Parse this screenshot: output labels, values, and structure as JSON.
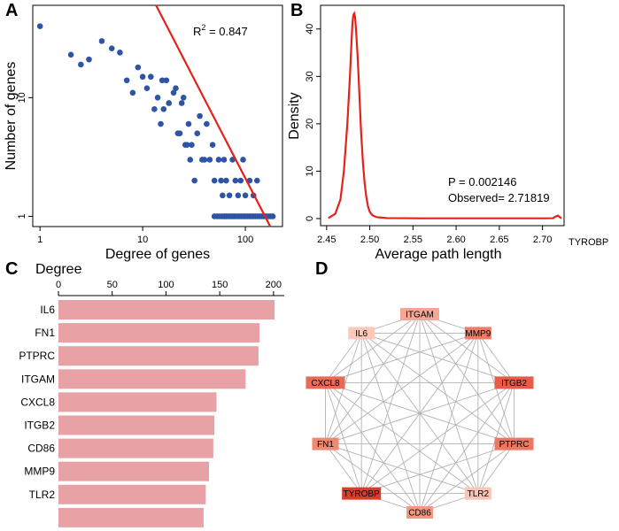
{
  "panels": {
    "a": "A",
    "b": "B",
    "c": "C",
    "d": "D"
  },
  "chart_data": [
    {
      "id": "A",
      "type": "scatter",
      "xscale": "log",
      "yscale": "log",
      "xlabel": "Degree of genes",
      "ylabel": "Number of genes",
      "xlim": [
        0.85,
        230
      ],
      "ylim": [
        0.82,
        60
      ],
      "x_ticks": [
        "1",
        "10",
        "100"
      ],
      "y_ticks": [
        "1",
        "10"
      ],
      "annotation_prefix": "R",
      "annotation_sup": "2",
      "annotation_value": " = 0.847",
      "points": [
        [
          1,
          40
        ],
        [
          2,
          23
        ],
        [
          2.5,
          19
        ],
        [
          3,
          21
        ],
        [
          4,
          30
        ],
        [
          5,
          26
        ],
        [
          6,
          24
        ],
        [
          7,
          14
        ],
        [
          8,
          11
        ],
        [
          9,
          18
        ],
        [
          10,
          15
        ],
        [
          11,
          12
        ],
        [
          12,
          15
        ],
        [
          13,
          8
        ],
        [
          14,
          10
        ],
        [
          15,
          6
        ],
        [
          15.5,
          14
        ],
        [
          16,
          8
        ],
        [
          17,
          14
        ],
        [
          18,
          9
        ],
        [
          20,
          11
        ],
        [
          21,
          12
        ],
        [
          22,
          5
        ],
        [
          23,
          5
        ],
        [
          24,
          9
        ],
        [
          25,
          10
        ],
        [
          26,
          4
        ],
        [
          27,
          4
        ],
        [
          28,
          6
        ],
        [
          29,
          3
        ],
        [
          30,
          4
        ],
        [
          32,
          2
        ],
        [
          34,
          5
        ],
        [
          36,
          7
        ],
        [
          38,
          3
        ],
        [
          40,
          3
        ],
        [
          42,
          6
        ],
        [
          45,
          3
        ],
        [
          48,
          4
        ],
        [
          50,
          2
        ],
        [
          55,
          3
        ],
        [
          58,
          2
        ],
        [
          60,
          1.5
        ],
        [
          62,
          3
        ],
        [
          65,
          2
        ],
        [
          70,
          1.5
        ],
        [
          75,
          3
        ],
        [
          80,
          2
        ],
        [
          85,
          1.5
        ],
        [
          90,
          2
        ],
        [
          95,
          3
        ],
        [
          100,
          1.5
        ],
        [
          110,
          2
        ],
        [
          120,
          1.5
        ],
        [
          130,
          2
        ],
        [
          50,
          1
        ],
        [
          53,
          1
        ],
        [
          56,
          1
        ],
        [
          59,
          1
        ],
        [
          62,
          1
        ],
        [
          65,
          1
        ],
        [
          68,
          1
        ],
        [
          71,
          1
        ],
        [
          74,
          1
        ],
        [
          77,
          1
        ],
        [
          80,
          1
        ],
        [
          84,
          1
        ],
        [
          88,
          1
        ],
        [
          92,
          1
        ],
        [
          96,
          1
        ],
        [
          100,
          1
        ],
        [
          105,
          1
        ],
        [
          110,
          1
        ],
        [
          115,
          1
        ],
        [
          120,
          1
        ],
        [
          126,
          1
        ],
        [
          132,
          1
        ],
        [
          138,
          1
        ],
        [
          145,
          1
        ],
        [
          152,
          1
        ],
        [
          160,
          1
        ],
        [
          168,
          1
        ],
        [
          176,
          1
        ],
        [
          185,
          1
        ]
      ],
      "fit_line": [
        [
          13.5,
          60
        ],
        [
          175,
          0.82
        ]
      ],
      "point_color": "#2e54a6",
      "line_color": "#e3231b"
    },
    {
      "id": "B",
      "type": "line",
      "xlabel": "Average path length",
      "ylabel": "Density",
      "xlim": [
        2.443,
        2.725
      ],
      "ylim": [
        -1.5,
        45
      ],
      "x_ticks": [
        "2.45",
        "2.50",
        "2.55",
        "2.60",
        "2.65",
        "2.70"
      ],
      "y_ticks": [
        "0",
        "10",
        "20",
        "30",
        "40"
      ],
      "annotation_p": "P = 0.002146",
      "annotation_observed": "Observed= 2.71819",
      "extra_label": "TYROBP",
      "curve": [
        [
          2.452,
          0.1
        ],
        [
          2.46,
          1.0
        ],
        [
          2.466,
          4
        ],
        [
          2.47,
          10
        ],
        [
          2.474,
          20
        ],
        [
          2.477,
          30
        ],
        [
          2.479,
          38
        ],
        [
          2.48,
          41.5
        ],
        [
          2.481,
          43
        ],
        [
          2.482,
          43.3
        ],
        [
          2.483,
          42.5
        ],
        [
          2.484,
          40
        ],
        [
          2.486,
          34
        ],
        [
          2.488,
          26
        ],
        [
          2.49,
          18
        ],
        [
          2.492,
          12
        ],
        [
          2.494,
          7.5
        ],
        [
          2.496,
          4.5
        ],
        [
          2.498,
          2.5
        ],
        [
          2.5,
          1.4
        ],
        [
          2.503,
          0.7
        ],
        [
          2.508,
          0.3
        ],
        [
          2.52,
          0.1
        ],
        [
          2.56,
          0.05
        ],
        [
          2.6,
          0.05
        ],
        [
          2.65,
          0.05
        ],
        [
          2.7,
          0.05
        ],
        [
          2.712,
          0.08
        ],
        [
          2.716,
          0.5
        ],
        [
          2.718,
          0.6
        ],
        [
          2.72,
          0.3
        ],
        [
          2.722,
          0.05
        ]
      ],
      "line_color": "#e3231b"
    },
    {
      "id": "C",
      "type": "bar",
      "orientation": "horizontal",
      "axis_title": "Degree",
      "xlim": [
        0,
        210
      ],
      "x_ticks": [
        "0",
        "50",
        "100",
        "150",
        "200"
      ],
      "categories": [
        "IL6",
        "FN1",
        "PTPRC",
        "ITGAM",
        "CXCL8",
        "ITGB2",
        "CD86",
        "MMP9",
        "TLR2",
        ""
      ],
      "values": [
        201,
        187,
        186,
        174,
        147,
        145,
        144,
        140,
        137,
        135
      ],
      "bar_color": "#e8a1a4"
    },
    {
      "id": "D",
      "type": "network",
      "nodes": [
        {
          "label": "ITGAM",
          "color": "#f4a796"
        },
        {
          "label": "MMP9",
          "color": "#ef7c66"
        },
        {
          "label": "ITGB2",
          "color": "#e85b47"
        },
        {
          "label": "PTPRC",
          "color": "#ee7762"
        },
        {
          "label": "TLR2",
          "color": "#fbc4b5"
        },
        {
          "label": "CD86",
          "color": "#f59882"
        },
        {
          "label": "TYROBP",
          "color": "#dc3b2c"
        },
        {
          "label": "FN1",
          "color": "#f2886f"
        },
        {
          "label": "CXCL8",
          "color": "#ea6b55"
        },
        {
          "label": "IL6",
          "color": "#fcc8ba"
        }
      ],
      "edge_color": "#b3b3b3"
    }
  ]
}
